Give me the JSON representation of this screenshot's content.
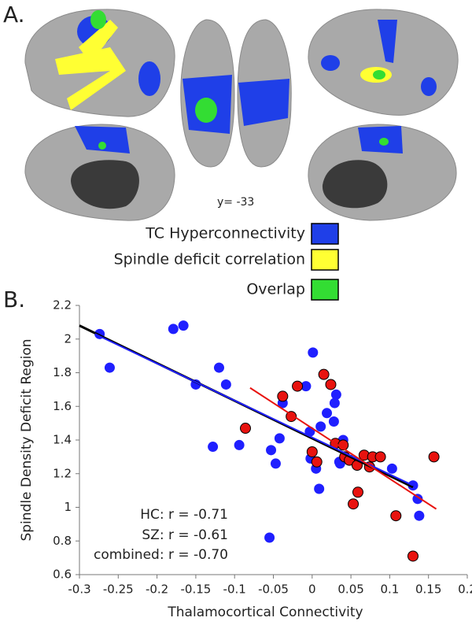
{
  "panel_a": {
    "label": "A.",
    "slice_label": "y=  -33",
    "legend": [
      {
        "name": "TC Hyperconnectivity",
        "color": "#1f3fe8"
      },
      {
        "name": "Spindle deficit correlation",
        "color": "#ffff33"
      },
      {
        "name": "Overlap",
        "color": "#33dd33"
      }
    ]
  },
  "chart_data": {
    "type": "scatter",
    "panel_label": "B.",
    "x_label": "Thalamocortical Connectivity",
    "y_label": "Spindle Density Deficit Region",
    "xlim": [
      -0.3,
      0.2
    ],
    "ylim": [
      0.6,
      2.2
    ],
    "xticks": [
      -0.3,
      -0.25,
      -0.2,
      -0.15,
      -0.1,
      -0.05,
      0,
      0.05,
      0.1,
      0.15,
      0.2
    ],
    "yticks": [
      0.6,
      0.8,
      1,
      1.2,
      1.4,
      1.6,
      1.8,
      2,
      2.2
    ],
    "series": [
      {
        "color": "#1f1fff",
        "x": [
          -0.274,
          -0.261,
          -0.179,
          -0.166,
          -0.15,
          -0.12,
          -0.111,
          -0.128,
          -0.094,
          -0.053,
          -0.047,
          -0.042,
          -0.038,
          -0.055,
          -0.008,
          0.001,
          -0.003,
          -0.002,
          0.005,
          0.009,
          0.011,
          0.019,
          0.028,
          0.031,
          0.029,
          0.036,
          0.04,
          0.035,
          0.103,
          0.13,
          0.136,
          0.138
        ],
        "values": [
          2.03,
          1.83,
          2.06,
          2.08,
          1.73,
          1.83,
          1.73,
          1.36,
          1.37,
          1.34,
          1.26,
          1.41,
          1.62,
          0.82,
          1.72,
          1.92,
          1.45,
          1.29,
          1.23,
          1.11,
          1.48,
          1.56,
          1.51,
          1.67,
          1.62,
          1.26,
          1.4,
          1.27,
          1.23,
          1.13,
          1.05,
          0.95
        ]
      },
      {
        "color": "#e8130f",
        "x": [
          -0.086,
          -0.038,
          -0.019,
          -0.027,
          0.015,
          0.024,
          0.0,
          0.006,
          0.03,
          0.04,
          0.042,
          0.048,
          0.067,
          0.078,
          0.074,
          0.088,
          0.058,
          0.053,
          0.059,
          0.108,
          0.157,
          0.13
        ],
        "values": [
          1.47,
          1.66,
          1.72,
          1.54,
          1.79,
          1.73,
          1.33,
          1.27,
          1.38,
          1.37,
          1.3,
          1.28,
          1.31,
          1.3,
          1.24,
          1.3,
          1.25,
          1.02,
          1.09,
          0.95,
          1.3,
          0.71
        ]
      }
    ],
    "lines": [
      {
        "color": "#000000",
        "x": [
          -0.3,
          0.13
        ],
        "values": [
          2.08,
          1.12
        ]
      },
      {
        "color": "#1f1fff",
        "x": [
          -0.28,
          0.13
        ],
        "values": [
          2.03,
          1.13
        ]
      },
      {
        "color": "#e8130f",
        "x": [
          -0.08,
          0.16
        ],
        "values": [
          1.71,
          0.99
        ]
      }
    ],
    "annotations": [
      "HC: r = -0.71",
      "SZ: r = -0.61",
      "combined: r = -0.70"
    ]
  }
}
